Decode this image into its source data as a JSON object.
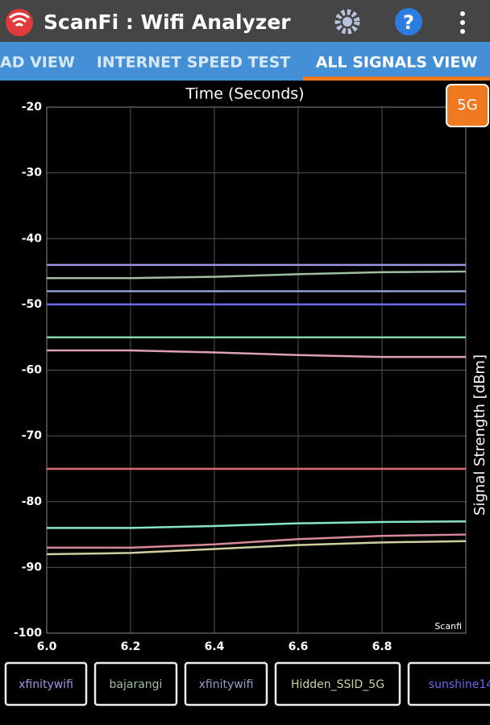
{
  "app_bar": {
    "title": "ScanFi : Wifi Analyzer"
  },
  "tabs": [
    "AD VIEW",
    "INTERNET SPEED TEST",
    "ALL SIGNALS VIEW"
  ],
  "band_button": "5G",
  "watermark": "Scanfi",
  "chart_data": {
    "type": "line",
    "title": "Time (Seconds)",
    "y_label": "Signal Strength [dBm]",
    "x": [
      6,
      6.2,
      6.4,
      6.6,
      6.8,
      7
    ],
    "xlim": [
      6,
      7
    ],
    "xticks": [
      {
        "value": 6,
        "label": "6.0"
      },
      6.2,
      6.4,
      6.6,
      6.8
    ],
    "ylim": [
      -100,
      -20
    ],
    "yticks": [
      -20,
      -30,
      -40,
      -50,
      -60,
      -70,
      -80,
      -90,
      -100
    ],
    "grid": true,
    "series": [
      {
        "name": "xfinitywifi",
        "color": "#9c98e6",
        "values": [
          -44,
          -44,
          -44,
          -44,
          -44,
          -44
        ]
      },
      {
        "name": "bajarangi",
        "color": "#9fbf9f",
        "values": [
          -46,
          -46,
          -45.8,
          -45.4,
          -45.1,
          -45
        ]
      },
      {
        "name": "xfinitywifi",
        "color": "#8f9fcf",
        "values": [
          -48,
          -48,
          -48,
          -48,
          -48,
          -48
        ]
      },
      {
        "name": "Hidden_SSID_5G",
        "color": "#cfcf9f",
        "values": [
          -88,
          -87.8,
          -87.2,
          -86.6,
          -86.2,
          -86
        ]
      },
      {
        "name": "sunshine14",
        "color": "#6a6af0",
        "values": [
          -50,
          -50,
          -50,
          -50,
          -50,
          -50
        ]
      },
      {
        "color": "#86d6a6",
        "values": [
          -55,
          -55,
          -55,
          -55,
          -55,
          -55
        ]
      },
      {
        "color": "#e0a0b4",
        "values": [
          -57,
          -57,
          -57.3,
          -57.7,
          -58,
          -58
        ]
      },
      {
        "color": "#e06878",
        "values": [
          -75,
          -75,
          -75,
          -75,
          -75,
          -75
        ]
      },
      {
        "color": "#86e6c6",
        "values": [
          -84,
          -84,
          -83.7,
          -83.3,
          -83.1,
          -83
        ]
      },
      {
        "color": "#d88898",
        "values": [
          -87,
          -87,
          -86.5,
          -85.7,
          -85.2,
          -85
        ]
      }
    ]
  }
}
